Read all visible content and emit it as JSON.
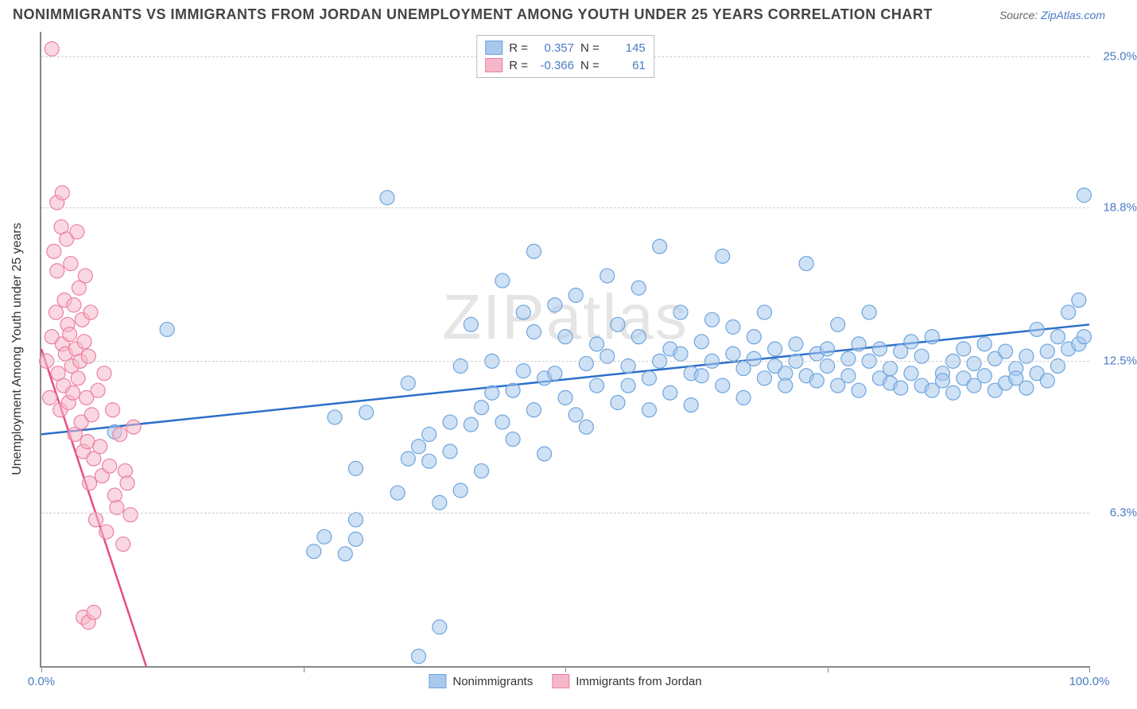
{
  "title": "NONIMMIGRANTS VS IMMIGRANTS FROM JORDAN UNEMPLOYMENT AMONG YOUTH UNDER 25 YEARS CORRELATION CHART",
  "source_label": "Source:",
  "source_name": "ZipAtlas.com",
  "watermark": "ZIPatlas",
  "y_axis_label": "Unemployment Among Youth under 25 years",
  "chart": {
    "type": "scatter",
    "xlim": [
      0,
      100
    ],
    "ylim": [
      0,
      26
    ],
    "x_ticks": [
      0,
      25,
      50,
      75,
      100
    ],
    "x_tick_labels": [
      "0.0%",
      "",
      "",
      "",
      "100.0%"
    ],
    "y_ticks": [
      6.3,
      12.5,
      18.8,
      25.0
    ],
    "y_tick_labels": [
      "6.3%",
      "12.5%",
      "18.8%",
      "25.0%"
    ],
    "grid_color": "#d0d0d0",
    "background_color": "#ffffff",
    "axis_color": "#888888",
    "marker_radius": 9,
    "marker_stroke_width": 1.2,
    "series": [
      {
        "key": "nonimmigrants",
        "label": "Nonimmigrants",
        "r_value": "0.357",
        "n_value": "145",
        "fill_color": "#a8c8ec",
        "fill_opacity": 0.55,
        "stroke_color": "#6ea5de",
        "trend_color": "#2b6fc9",
        "trend_width": 2.5,
        "trend": {
          "x1": 0,
          "y1": 9.5,
          "x2": 100,
          "y2": 14.0
        },
        "points": [
          [
            7,
            9.6
          ],
          [
            12,
            13.8
          ],
          [
            26,
            4.7
          ],
          [
            27,
            5.3
          ],
          [
            28,
            10.2
          ],
          [
            29,
            4.6
          ],
          [
            30,
            5.2
          ],
          [
            30,
            6.0
          ],
          [
            30,
            8.1
          ],
          [
            31,
            10.4
          ],
          [
            33,
            19.2
          ],
          [
            34,
            7.1
          ],
          [
            35,
            8.5
          ],
          [
            35,
            11.6
          ],
          [
            36,
            9.0
          ],
          [
            36,
            0.4
          ],
          [
            37,
            8.4
          ],
          [
            37,
            9.5
          ],
          [
            38,
            6.7
          ],
          [
            38,
            1.6
          ],
          [
            39,
            8.8
          ],
          [
            39,
            10.0
          ],
          [
            40,
            7.2
          ],
          [
            40,
            12.3
          ],
          [
            41,
            9.9
          ],
          [
            41,
            14.0
          ],
          [
            42,
            10.6
          ],
          [
            42,
            8.0
          ],
          [
            43,
            11.2
          ],
          [
            43,
            12.5
          ],
          [
            44,
            10.0
          ],
          [
            44,
            15.8
          ],
          [
            45,
            11.3
          ],
          [
            45,
            9.3
          ],
          [
            46,
            12.1
          ],
          [
            46,
            14.5
          ],
          [
            47,
            10.5
          ],
          [
            47,
            13.7
          ],
          [
            47,
            17.0
          ],
          [
            48,
            11.8
          ],
          [
            48,
            8.7
          ],
          [
            49,
            12.0
          ],
          [
            49,
            14.8
          ],
          [
            50,
            11.0
          ],
          [
            50,
            13.5
          ],
          [
            51,
            10.3
          ],
          [
            51,
            15.2
          ],
          [
            52,
            12.4
          ],
          [
            52,
            9.8
          ],
          [
            53,
            11.5
          ],
          [
            53,
            13.2
          ],
          [
            54,
            12.7
          ],
          [
            54,
            16.0
          ],
          [
            55,
            10.8
          ],
          [
            55,
            14.0
          ],
          [
            56,
            12.3
          ],
          [
            56,
            11.5
          ],
          [
            57,
            13.5
          ],
          [
            57,
            15.5
          ],
          [
            58,
            11.8
          ],
          [
            58,
            10.5
          ],
          [
            59,
            12.5
          ],
          [
            59,
            17.2
          ],
          [
            60,
            13.0
          ],
          [
            60,
            11.2
          ],
          [
            61,
            12.8
          ],
          [
            61,
            14.5
          ],
          [
            62,
            12.0
          ],
          [
            62,
            10.7
          ],
          [
            63,
            13.3
          ],
          [
            63,
            11.9
          ],
          [
            64,
            12.5
          ],
          [
            64,
            14.2
          ],
          [
            65,
            11.5
          ],
          [
            65,
            16.8
          ],
          [
            66,
            12.8
          ],
          [
            66,
            13.9
          ],
          [
            67,
            12.2
          ],
          [
            67,
            11.0
          ],
          [
            68,
            13.5
          ],
          [
            68,
            12.6
          ],
          [
            69,
            11.8
          ],
          [
            69,
            14.5
          ],
          [
            70,
            12.3
          ],
          [
            70,
            13.0
          ],
          [
            71,
            12.0
          ],
          [
            71,
            11.5
          ],
          [
            72,
            13.2
          ],
          [
            72,
            12.5
          ],
          [
            73,
            11.9
          ],
          [
            73,
            16.5
          ],
          [
            74,
            12.8
          ],
          [
            74,
            11.7
          ],
          [
            75,
            13.0
          ],
          [
            75,
            12.3
          ],
          [
            76,
            11.5
          ],
          [
            76,
            14.0
          ],
          [
            77,
            12.6
          ],
          [
            77,
            11.9
          ],
          [
            78,
            13.2
          ],
          [
            78,
            11.3
          ],
          [
            79,
            12.5
          ],
          [
            79,
            14.5
          ],
          [
            80,
            11.8
          ],
          [
            80,
            13.0
          ],
          [
            81,
            12.2
          ],
          [
            81,
            11.6
          ],
          [
            82,
            12.9
          ],
          [
            82,
            11.4
          ],
          [
            83,
            13.3
          ],
          [
            83,
            12.0
          ],
          [
            84,
            11.5
          ],
          [
            84,
            12.7
          ],
          [
            85,
            11.3
          ],
          [
            85,
            13.5
          ],
          [
            86,
            12.0
          ],
          [
            86,
            11.7
          ],
          [
            87,
            12.5
          ],
          [
            87,
            11.2
          ],
          [
            88,
            13.0
          ],
          [
            88,
            11.8
          ],
          [
            89,
            12.4
          ],
          [
            89,
            11.5
          ],
          [
            90,
            13.2
          ],
          [
            90,
            11.9
          ],
          [
            91,
            12.6
          ],
          [
            91,
            11.3
          ],
          [
            92,
            12.9
          ],
          [
            92,
            11.6
          ],
          [
            93,
            12.2
          ],
          [
            93,
            11.8
          ],
          [
            94,
            12.7
          ],
          [
            94,
            11.4
          ],
          [
            95,
            13.8
          ],
          [
            95,
            12.0
          ],
          [
            96,
            12.9
          ],
          [
            96,
            11.7
          ],
          [
            97,
            13.5
          ],
          [
            97,
            12.3
          ],
          [
            98,
            14.5
          ],
          [
            98,
            13.0
          ],
          [
            99,
            15.0
          ],
          [
            99,
            13.2
          ],
          [
            99.5,
            19.3
          ],
          [
            99.5,
            13.5
          ]
        ]
      },
      {
        "key": "immigrants",
        "label": "Immigrants from Jordan",
        "r_value": "-0.366",
        "n_value": "61",
        "fill_color": "#f5b8c9",
        "fill_opacity": 0.55,
        "stroke_color": "#ec7fa3",
        "trend_color": "#e54d7f",
        "trend_width": 2.5,
        "trend": {
          "x1": 0,
          "y1": 13.0,
          "x2": 10,
          "y2": 0
        },
        "points": [
          [
            0.5,
            12.5
          ],
          [
            0.8,
            11.0
          ],
          [
            1.0,
            13.5
          ],
          [
            1.2,
            17.0
          ],
          [
            1.4,
            14.5
          ],
          [
            1.5,
            16.2
          ],
          [
            1.6,
            12.0
          ],
          [
            1.8,
            10.5
          ],
          [
            1.9,
            18.0
          ],
          [
            2.0,
            13.2
          ],
          [
            2.1,
            11.5
          ],
          [
            2.2,
            15.0
          ],
          [
            2.3,
            12.8
          ],
          [
            2.4,
            17.5
          ],
          [
            2.5,
            14.0
          ],
          [
            2.6,
            10.8
          ],
          [
            2.7,
            13.6
          ],
          [
            2.8,
            16.5
          ],
          [
            2.9,
            12.3
          ],
          [
            3.0,
            11.2
          ],
          [
            3.1,
            14.8
          ],
          [
            3.2,
            9.5
          ],
          [
            3.3,
            13.0
          ],
          [
            3.4,
            17.8
          ],
          [
            3.5,
            11.8
          ],
          [
            3.6,
            15.5
          ],
          [
            3.7,
            12.5
          ],
          [
            3.8,
            10.0
          ],
          [
            3.9,
            14.2
          ],
          [
            4.0,
            8.8
          ],
          [
            4.1,
            13.3
          ],
          [
            4.2,
            16.0
          ],
          [
            4.3,
            11.0
          ],
          [
            4.4,
            9.2
          ],
          [
            4.5,
            12.7
          ],
          [
            4.6,
            7.5
          ],
          [
            4.7,
            14.5
          ],
          [
            4.8,
            10.3
          ],
          [
            5.0,
            8.5
          ],
          [
            5.2,
            6.0
          ],
          [
            5.4,
            11.3
          ],
          [
            5.6,
            9.0
          ],
          [
            5.8,
            7.8
          ],
          [
            6.0,
            12.0
          ],
          [
            6.2,
            5.5
          ],
          [
            6.5,
            8.2
          ],
          [
            6.8,
            10.5
          ],
          [
            7.0,
            7.0
          ],
          [
            7.2,
            6.5
          ],
          [
            7.5,
            9.5
          ],
          [
            7.8,
            5.0
          ],
          [
            8.0,
            8.0
          ],
          [
            8.2,
            7.5
          ],
          [
            8.5,
            6.2
          ],
          [
            8.8,
            9.8
          ],
          [
            1.0,
            25.3
          ],
          [
            1.5,
            19.0
          ],
          [
            2.0,
            19.4
          ],
          [
            4.0,
            2.0
          ],
          [
            4.5,
            1.8
          ],
          [
            5.0,
            2.2
          ]
        ]
      }
    ]
  },
  "legend_top_labels": {
    "r": "R =",
    "n": "N ="
  },
  "colors": {
    "tick_label": "#4a7bc4",
    "text": "#333333"
  }
}
